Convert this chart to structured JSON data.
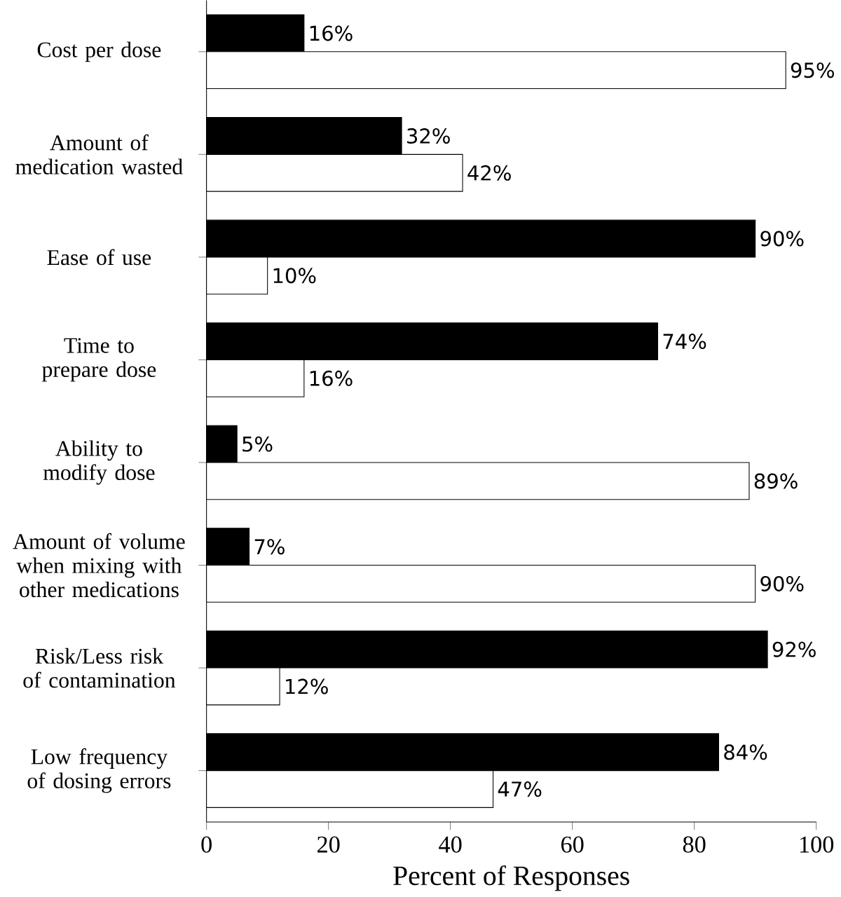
{
  "chart_data": {
    "type": "bar",
    "orientation": "horizontal",
    "xlabel": "Percent of Responses",
    "categories": [
      "Cost per dose",
      "Amount of medication wasted",
      "Ease of use",
      "Time to prepare dose",
      "Ability to modify dose",
      "Amount of volume when mixing with other medications",
      "Risk/Less risk of contamination",
      "Low frequency of dosing errors"
    ],
    "series": [
      {
        "color": "#000000",
        "values": [
          16,
          32,
          90,
          74,
          5,
          7,
          92,
          84
        ],
        "value_labels": [
          "16%",
          "32%",
          "90%",
          "74%",
          "5%",
          "7%",
          "92%",
          "84%"
        ]
      },
      {
        "color": "#ffffff",
        "values": [
          95,
          42,
          10,
          16,
          89,
          90,
          12,
          47
        ],
        "value_labels": [
          "95%",
          "42%",
          "10%",
          "16%",
          "89%",
          "90%",
          "12%",
          "47%"
        ]
      }
    ],
    "xlim": [
      0,
      100
    ],
    "xticks": [
      0,
      20,
      40,
      60,
      80,
      100
    ],
    "grid": false
  }
}
